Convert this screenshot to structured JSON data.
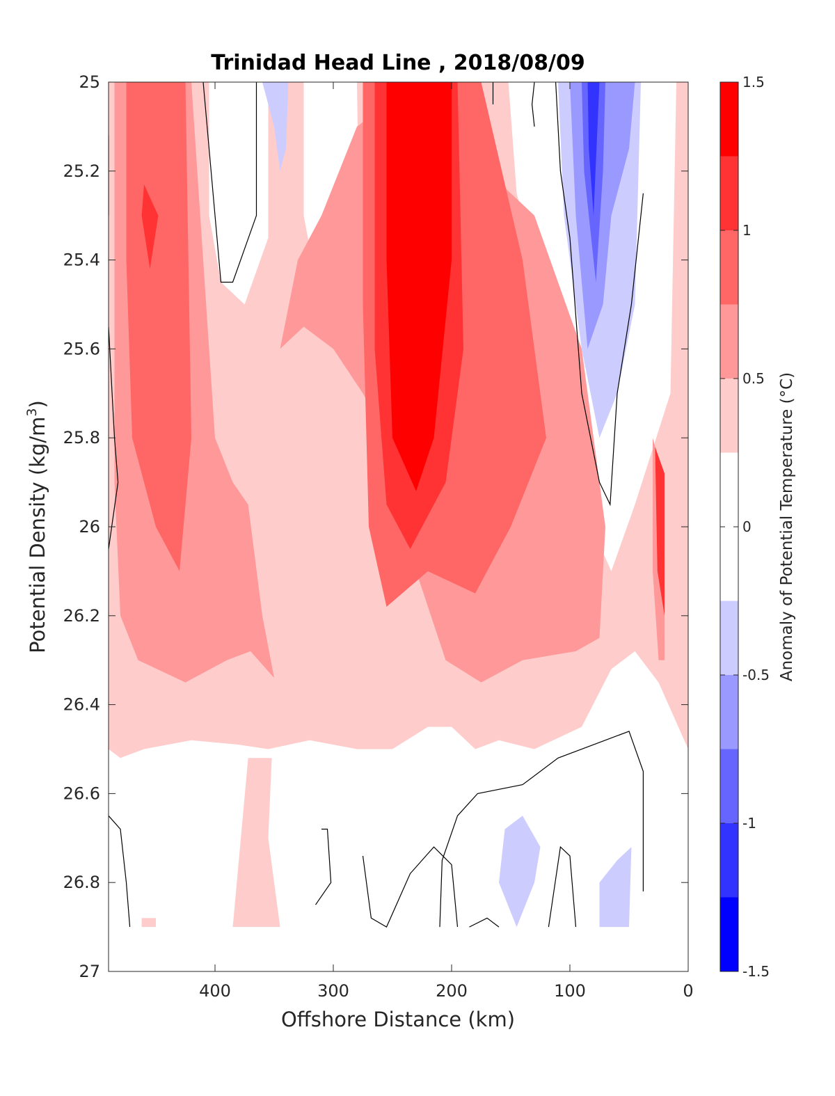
{
  "chart_data": {
    "type": "heatmap",
    "title": "Trinidad Head Line , 2018/08/09",
    "xlabel": "Offshore Distance (km)",
    "ylabel": "Potential Density (kg/m",
    "ylabel_sup": "3",
    "ylabel_end": ")",
    "colorbar_label": "Anomaly of Potential Temperature (°C)",
    "xlim": [
      490,
      0
    ],
    "ylim": [
      25,
      27
    ],
    "y_reversed": true,
    "x_reversed": true,
    "x_ticks": [
      "400",
      "300",
      "200",
      "100",
      "0"
    ],
    "y_ticks": [
      "25",
      "25.2",
      "25.4",
      "25.6",
      "25.8",
      "26",
      "26.2",
      "26.4",
      "26.6",
      "26.8",
      "27"
    ],
    "colorbar": {
      "range": [
        -1.5,
        1.5
      ],
      "levels": [
        -1.5,
        -1.25,
        -1.0,
        -0.75,
        -0.5,
        -0.25,
        0.25,
        0.5,
        0.75,
        1.0,
        1.25,
        1.5
      ],
      "colors": [
        "#0000ff",
        "#3333ff",
        "#6666ff",
        "#9999ff",
        "#ccccff",
        "#ffffff",
        "#ffcccc",
        "#ff9999",
        "#ff6666",
        "#ff3333",
        "#ff0000"
      ],
      "tick_labels": [
        "-1.5",
        "-1",
        "-0.5",
        "0",
        "0.5",
        "1",
        "1.5"
      ]
    },
    "regions": [
      {
        "level": 0.5,
        "color": "#ffcccc",
        "poly": [
          [
            490,
            25
          ],
          [
            0,
            25
          ],
          [
            0,
            26.5
          ],
          [
            25,
            26.35
          ],
          [
            45,
            26.28
          ],
          [
            65,
            26.32
          ],
          [
            90,
            26.45
          ],
          [
            130,
            26.5
          ],
          [
            160,
            26.48
          ],
          [
            180,
            26.5
          ],
          [
            200,
            26.45
          ],
          [
            220,
            26.45
          ],
          [
            250,
            26.5
          ],
          [
            280,
            26.5
          ],
          [
            320,
            26.48
          ],
          [
            355,
            26.5
          ],
          [
            380,
            26.49
          ],
          [
            420,
            26.48
          ],
          [
            460,
            26.5
          ],
          [
            480,
            26.52
          ],
          [
            490,
            26.5
          ]
        ]
      },
      {
        "level": 0.5,
        "color": "#ffcccc",
        "poly": [
          [
            372,
            26.52
          ],
          [
            352,
            26.52
          ],
          [
            355,
            26.7
          ],
          [
            345,
            26.9
          ],
          [
            385,
            26.9
          ]
        ]
      },
      {
        "level": 0.5,
        "color": "#ffcccc",
        "poly": [
          [
            462,
            26.88
          ],
          [
            450,
            26.88
          ],
          [
            450,
            26.9
          ],
          [
            462,
            26.9
          ]
        ]
      },
      {
        "level": 0.0,
        "color": "#ffffff",
        "poly": [
          [
            405,
            25
          ],
          [
            355,
            25
          ],
          [
            355,
            25.35
          ],
          [
            375,
            25.5
          ],
          [
            395,
            25.45
          ],
          [
            405,
            25.3
          ]
        ]
      },
      {
        "level": 0.0,
        "color": "#ffffff",
        "poly": [
          [
            325,
            25
          ],
          [
            280,
            25
          ],
          [
            278,
            25.35
          ],
          [
            300,
            25.3
          ],
          [
            318,
            25.4
          ],
          [
            325,
            25.3
          ]
        ]
      },
      {
        "level": 0.0,
        "color": "#ffffff",
        "poly": [
          [
            152,
            25
          ],
          [
            10,
            25
          ],
          [
            15,
            25.7
          ],
          [
            45,
            25.95
          ],
          [
            65,
            26.1
          ],
          [
            90,
            25.95
          ],
          [
            120,
            25.5
          ],
          [
            145,
            25.25
          ]
        ]
      },
      {
        "level": 0.75,
        "color": "#ff9999",
        "poly": [
          [
            485,
            25
          ],
          [
            420,
            25
          ],
          [
            400,
            25.8
          ],
          [
            385,
            25.9
          ],
          [
            372,
            25.95
          ],
          [
            360,
            26.2
          ],
          [
            350,
            26.34
          ],
          [
            370,
            26.28
          ],
          [
            390,
            26.3
          ],
          [
            425,
            26.35
          ],
          [
            465,
            26.3
          ],
          [
            480,
            26.2
          ],
          [
            485,
            25.9
          ]
        ]
      },
      {
        "level": 0.75,
        "color": "#ff9999",
        "poly": [
          [
            345,
            25.6
          ],
          [
            325,
            25.55
          ],
          [
            300,
            25.6
          ],
          [
            275,
            25.7
          ],
          [
            255,
            25.8
          ],
          [
            230,
            26.1
          ],
          [
            205,
            26.3
          ],
          [
            175,
            26.35
          ],
          [
            140,
            26.3
          ],
          [
            95,
            26.28
          ],
          [
            75,
            26.25
          ],
          [
            70,
            26.0
          ],
          [
            90,
            25.6
          ],
          [
            130,
            25.3
          ],
          [
            170,
            25.2
          ],
          [
            200,
            25.1
          ],
          [
            255,
            25.05
          ],
          [
            280,
            25.1
          ],
          [
            310,
            25.3
          ],
          [
            330,
            25.4
          ]
        ]
      },
      {
        "level": 0.75,
        "color": "#ff9999",
        "poly": [
          [
            30,
            25.8
          ],
          [
            20,
            25.9
          ],
          [
            20,
            26.3
          ],
          [
            25,
            26.3
          ],
          [
            30,
            26.1
          ]
        ]
      },
      {
        "level": 1.0,
        "color": "#ff6666",
        "poly": [
          [
            475,
            25
          ],
          [
            425,
            25
          ],
          [
            420,
            25.8
          ],
          [
            430,
            26.1
          ],
          [
            450,
            26.0
          ],
          [
            470,
            25.8
          ],
          [
            475,
            25.4
          ]
        ]
      },
      {
        "level": 1.0,
        "color": "#ff6666",
        "poly": [
          [
            275,
            25
          ],
          [
            175,
            25
          ],
          [
            140,
            25.4
          ],
          [
            120,
            25.8
          ],
          [
            150,
            26.0
          ],
          [
            180,
            26.15
          ],
          [
            220,
            26.1
          ],
          [
            255,
            26.18
          ],
          [
            270,
            26.0
          ],
          [
            275,
            25.5
          ]
        ]
      },
      {
        "level": 1.25,
        "color": "#ff3333",
        "poly": [
          [
            460,
            25.23
          ],
          [
            448,
            25.3
          ],
          [
            455,
            25.42
          ],
          [
            462,
            25.3
          ]
        ]
      },
      {
        "level": 1.25,
        "color": "#ff3333",
        "poly": [
          [
            265,
            25
          ],
          [
            195,
            25
          ],
          [
            190,
            25.6
          ],
          [
            205,
            25.9
          ],
          [
            235,
            26.05
          ],
          [
            255,
            25.95
          ],
          [
            265,
            25.6
          ]
        ]
      },
      {
        "level": 1.25,
        "color": "#ff3333",
        "poly": [
          [
            28,
            25.82
          ],
          [
            20,
            25.88
          ],
          [
            20,
            26.2
          ],
          [
            26,
            26.1
          ]
        ]
      },
      {
        "level": 1.5,
        "color": "#ff0000",
        "poly": [
          [
            255,
            25
          ],
          [
            200,
            25
          ],
          [
            200,
            25.4
          ],
          [
            215,
            25.8
          ],
          [
            230,
            25.92
          ],
          [
            250,
            25.8
          ],
          [
            255,
            25.4
          ]
        ]
      },
      {
        "level": -0.25,
        "color": "#ccccff",
        "poly": [
          [
            110,
            25
          ],
          [
            40,
            25
          ],
          [
            45,
            25.5
          ],
          [
            60,
            25.7
          ],
          [
            75,
            25.8
          ],
          [
            90,
            25.6
          ],
          [
            105,
            25.3
          ]
        ]
      },
      {
        "level": -0.25,
        "color": "#ccccff",
        "poly": [
          [
            360,
            25
          ],
          [
            338,
            25
          ],
          [
            340,
            25.15
          ],
          [
            345,
            25.2
          ],
          [
            350,
            25.1
          ]
        ]
      },
      {
        "level": -0.25,
        "color": "#ccccff",
        "poly": [
          [
            160,
            26.8
          ],
          [
            145,
            26.9
          ],
          [
            130,
            26.8
          ],
          [
            125,
            26.72
          ],
          [
            140,
            26.65
          ],
          [
            155,
            26.68
          ]
        ]
      },
      {
        "level": -0.25,
        "color": "#ccccff",
        "poly": [
          [
            75,
            26.9
          ],
          [
            50,
            26.9
          ],
          [
            48,
            26.72
          ],
          [
            60,
            26.75
          ],
          [
            75,
            26.8
          ]
        ]
      },
      {
        "level": -0.5,
        "color": "#9999ff",
        "poly": [
          [
            100,
            25
          ],
          [
            45,
            25
          ],
          [
            50,
            25.15
          ],
          [
            65,
            25.3
          ],
          [
            72,
            25.5
          ],
          [
            85,
            25.6
          ],
          [
            95,
            25.3
          ]
        ]
      },
      {
        "level": -0.75,
        "color": "#6666ff",
        "poly": [
          [
            90,
            25
          ],
          [
            70,
            25
          ],
          [
            72,
            25.2
          ],
          [
            78,
            25.45
          ],
          [
            88,
            25.2
          ]
        ]
      },
      {
        "level": -1.0,
        "color": "#3333ff",
        "poly": [
          [
            85,
            25
          ],
          [
            75,
            25
          ],
          [
            80,
            25.3
          ],
          [
            84,
            25.15
          ]
        ]
      }
    ],
    "contours": [
      [
        [
          490,
          25.12
        ],
        [
          490,
          25.3
        ]
      ],
      [
        [
          490,
          25.55
        ],
        [
          485,
          25.8
        ],
        [
          482,
          25.9
        ],
        [
          490,
          26.05
        ]
      ],
      [
        [
          410,
          25
        ],
        [
          395,
          25.45
        ],
        [
          385,
          25.45
        ],
        [
          365,
          25.3
        ],
        [
          365,
          25
        ]
      ],
      [
        [
          165,
          25
        ],
        [
          165,
          25.05
        ]
      ],
      [
        [
          130,
          25.1
        ],
        [
          132,
          25.05
        ],
        [
          130,
          25
        ]
      ],
      [
        [
          112,
          25
        ],
        [
          108,
          25.2
        ],
        [
          100,
          25.35
        ],
        [
          90,
          25.7
        ],
        [
          75,
          25.9
        ],
        [
          66,
          25.95
        ],
        [
          60,
          25.7
        ],
        [
          48,
          25.5
        ],
        [
          38,
          25.25
        ]
      ],
      [
        [
          490,
          26.65
        ],
        [
          480,
          26.68
        ],
        [
          475,
          26.8
        ],
        [
          472,
          26.9
        ]
      ],
      [
        [
          310,
          26.68
        ],
        [
          305,
          26.68
        ],
        [
          302,
          26.8
        ],
        [
          315,
          26.85
        ]
      ],
      [
        [
          210,
          26.9
        ],
        [
          208,
          26.75
        ],
        [
          195,
          26.65
        ],
        [
          178,
          26.6
        ],
        [
          140,
          26.58
        ],
        [
          110,
          26.52
        ],
        [
          70,
          26.48
        ],
        [
          50,
          26.46
        ],
        [
          38,
          26.55
        ],
        [
          38,
          26.82
        ]
      ],
      [
        [
          275,
          26.74
        ],
        [
          268,
          26.88
        ],
        [
          255,
          26.9
        ],
        [
          235,
          26.78
        ],
        [
          215,
          26.72
        ],
        [
          200,
          26.76
        ],
        [
          195,
          26.9
        ]
      ],
      [
        [
          185,
          26.9
        ],
        [
          170,
          26.88
        ],
        [
          160,
          26.9
        ]
      ],
      [
        [
          118,
          26.9
        ],
        [
          108,
          26.72
        ],
        [
          100,
          26.74
        ],
        [
          95,
          26.9
        ]
      ]
    ]
  }
}
